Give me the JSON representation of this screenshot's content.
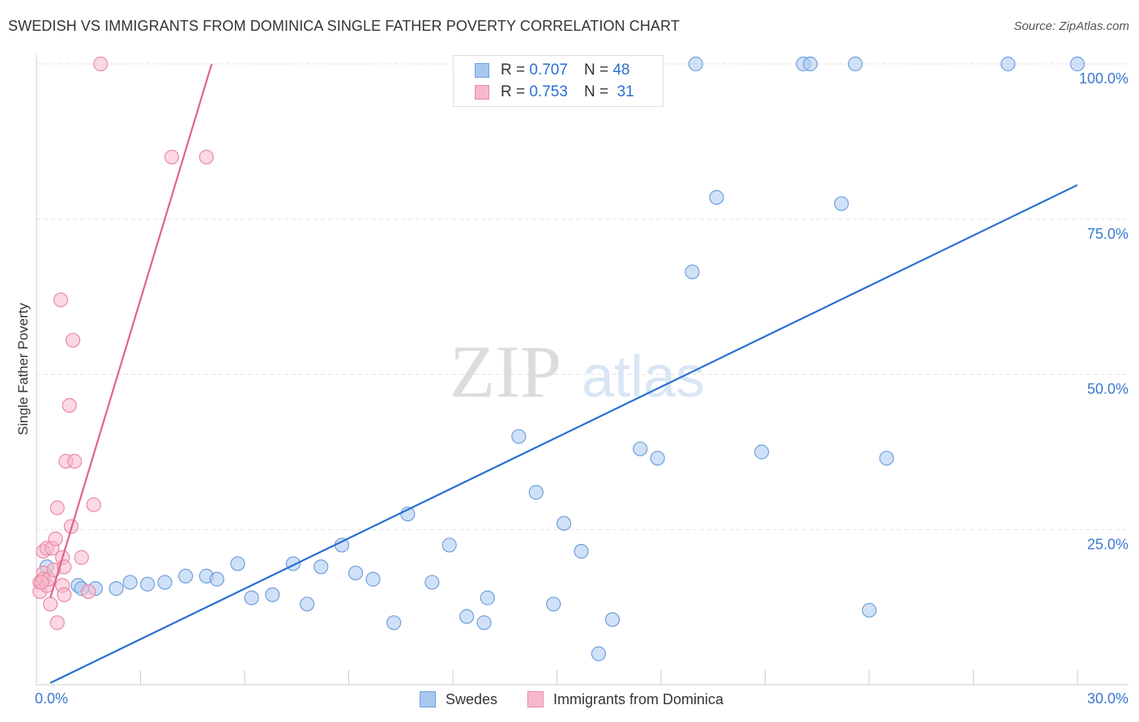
{
  "title": "SWEDISH VS IMMIGRANTS FROM DOMINICA SINGLE FATHER POVERTY CORRELATION CHART",
  "source": "Source: ZipAtlas.com",
  "watermark": {
    "zip": "ZIP",
    "atlas": "atlas"
  },
  "legend": {
    "r_label": "R =",
    "n_label": "N =",
    "swedes": {
      "r": "0.707",
      "n": "48"
    },
    "dominica": {
      "r": "0.753",
      "n": "31"
    }
  },
  "colors": {
    "swedes_fill": "#a9c8f0",
    "swedes_stroke": "#6f9fdc",
    "swedes_line": "#2a6fd1",
    "dominica_fill": "#f8b8cb",
    "dominica_stroke": "#e98aa8",
    "dominica_line": "#e0628d",
    "tick_label": "#3a78d0",
    "grid": "#e2e2e2"
  },
  "chart_data": {
    "type": "scatter",
    "title": "SWEDISH VS IMMIGRANTS FROM DOMINICA SINGLE FATHER POVERTY CORRELATION CHART",
    "xlabel": "",
    "ylabel": "Single Father Poverty",
    "xlim": [
      0,
      30
    ],
    "ylim": [
      0,
      100
    ],
    "x_tick_labels": [
      "0.0%",
      "30.0%"
    ],
    "y_ticks": [
      25,
      50,
      75,
      100
    ],
    "y_tick_labels": [
      "25.0%",
      "50.0%",
      "75.0%",
      "100.0%"
    ],
    "grid": true,
    "series": [
      {
        "name": "Swedes",
        "r": 0.707,
        "n": 48,
        "trend": {
          "x": [
            0.4,
            30.0
          ],
          "y": [
            0.3,
            80.5
          ]
        },
        "points": [
          [
            0.3,
            19.0
          ],
          [
            1.2,
            16.0
          ],
          [
            1.3,
            15.5
          ],
          [
            1.7,
            15.5
          ],
          [
            2.3,
            15.5
          ],
          [
            2.7,
            16.5
          ],
          [
            3.2,
            16.2
          ],
          [
            3.7,
            16.5
          ],
          [
            4.3,
            17.5
          ],
          [
            4.9,
            17.5
          ],
          [
            5.2,
            17.0
          ],
          [
            5.8,
            19.5
          ],
          [
            6.2,
            14.0
          ],
          [
            6.8,
            14.5
          ],
          [
            7.4,
            19.5
          ],
          [
            7.8,
            13.0
          ],
          [
            8.2,
            19.0
          ],
          [
            8.8,
            22.5
          ],
          [
            9.2,
            18.0
          ],
          [
            9.7,
            17.0
          ],
          [
            10.3,
            10.0
          ],
          [
            10.7,
            27.5
          ],
          [
            11.4,
            16.5
          ],
          [
            11.9,
            22.5
          ],
          [
            12.4,
            11.0
          ],
          [
            12.9,
            10.0
          ],
          [
            13.0,
            14.0
          ],
          [
            13.9,
            40.0
          ],
          [
            14.4,
            31.0
          ],
          [
            14.9,
            13.0
          ],
          [
            15.2,
            26.0
          ],
          [
            15.7,
            21.5
          ],
          [
            16.2,
            5.0
          ],
          [
            16.6,
            10.5
          ],
          [
            17.4,
            38.0
          ],
          [
            17.9,
            36.5
          ],
          [
            18.9,
            66.5
          ],
          [
            19.0,
            100.0
          ],
          [
            19.6,
            78.5
          ],
          [
            20.9,
            37.5
          ],
          [
            22.1,
            100.0
          ],
          [
            22.3,
            100.0
          ],
          [
            23.2,
            77.5
          ],
          [
            23.6,
            100.0
          ],
          [
            24.0,
            12.0
          ],
          [
            24.5,
            36.5
          ],
          [
            28.0,
            100.0
          ],
          [
            30.0,
            100.0
          ]
        ]
      },
      {
        "name": "Immigrants from Dominica",
        "r": 0.753,
        "n": 31,
        "trend": {
          "x": [
            0.4,
            5.05
          ],
          "y": [
            14.0,
            100.0
          ]
        },
        "points": [
          [
            0.1,
            16.5
          ],
          [
            0.1,
            15.0
          ],
          [
            0.2,
            18.0
          ],
          [
            0.2,
            17.0
          ],
          [
            0.2,
            21.5
          ],
          [
            0.3,
            16.0
          ],
          [
            0.3,
            22.0
          ],
          [
            0.35,
            17.0
          ],
          [
            0.4,
            13.0
          ],
          [
            0.45,
            22.0
          ],
          [
            0.5,
            18.5
          ],
          [
            0.55,
            23.5
          ],
          [
            0.6,
            10.0
          ],
          [
            0.6,
            28.5
          ],
          [
            0.7,
            62.0
          ],
          [
            0.75,
            20.5
          ],
          [
            0.75,
            16.0
          ],
          [
            0.8,
            14.5
          ],
          [
            0.8,
            19.0
          ],
          [
            0.85,
            36.0
          ],
          [
            0.95,
            45.0
          ],
          [
            1.0,
            25.5
          ],
          [
            1.05,
            55.5
          ],
          [
            1.1,
            36.0
          ],
          [
            1.3,
            20.5
          ],
          [
            1.5,
            15.0
          ],
          [
            1.65,
            29.0
          ],
          [
            1.85,
            100.0
          ],
          [
            3.9,
            85.0
          ],
          [
            4.9,
            85.0
          ],
          [
            0.15,
            16.5
          ]
        ]
      }
    ]
  }
}
